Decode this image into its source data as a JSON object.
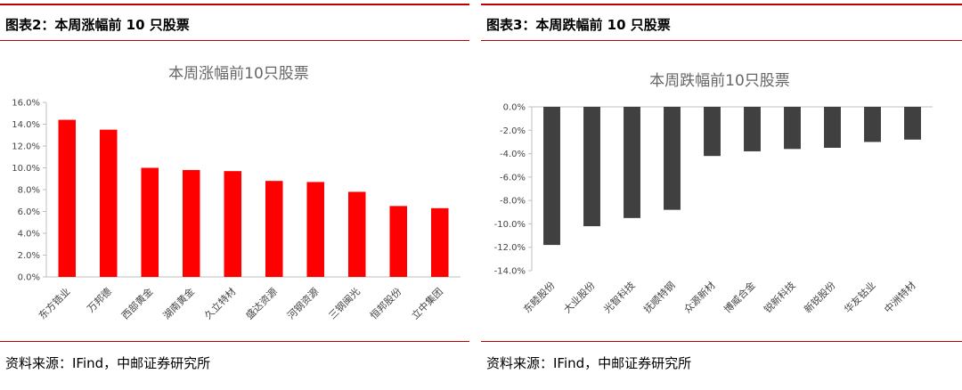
{
  "left": {
    "figure_title": "图表2：本周涨幅前 10 只股票",
    "source": "资料来源：IFind，中邮证券研究所"
  },
  "right": {
    "figure_title": "图表3：本周跌幅前 10 只股票",
    "source": "资料来源：IFind，中邮证券研究所"
  },
  "colors": {
    "rule": "#c00000",
    "up_bar": "#ff0000",
    "down_bar": "#404040"
  },
  "chart_data": [
    {
      "type": "bar",
      "title": "本周涨幅前10只股票",
      "categories": [
        "东方锆业",
        "万邦德",
        "西部黄金",
        "湖南黄金",
        "久立特材",
        "盛达资源",
        "河钢资源",
        "三钢闽光",
        "恒邦股份",
        "立中集团"
      ],
      "values": [
        14.4,
        13.5,
        10.0,
        9.8,
        9.7,
        8.8,
        8.7,
        7.8,
        6.5,
        6.3
      ],
      "yticks": [
        "0.0%",
        "2.0%",
        "4.0%",
        "6.0%",
        "8.0%",
        "10.0%",
        "12.0%",
        "14.0%",
        "16.0%"
      ],
      "ylim": [
        0,
        16
      ],
      "unit": "%",
      "grid": false,
      "legend": "none"
    },
    {
      "type": "bar",
      "title": "本周跌幅前10只股票",
      "categories": [
        "东睦股份",
        "大业股份",
        "光智科技",
        "抚顺特钢",
        "众源新材",
        "博威合金",
        "锐新科技",
        "新锐股份",
        "华友钴业",
        "中洲特材"
      ],
      "values": [
        -11.8,
        -10.2,
        -9.5,
        -8.8,
        -4.2,
        -3.8,
        -3.6,
        -3.5,
        -3.0,
        -2.8
      ],
      "yticks": [
        "0.0%",
        "-2.0%",
        "-4.0%",
        "-6.0%",
        "-8.0%",
        "-10.0%",
        "-12.0%",
        "-14.0%"
      ],
      "ylim": [
        -14,
        0
      ],
      "unit": "%",
      "grid": false,
      "legend": "none"
    }
  ]
}
